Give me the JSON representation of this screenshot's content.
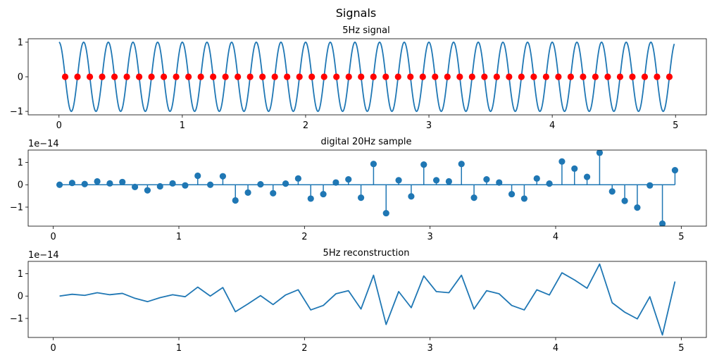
{
  "figure": {
    "suptitle": "Signals"
  },
  "colors": {
    "series": "#1f77b4",
    "samples": "#ff0000"
  },
  "chart_data": [
    {
      "type": "line",
      "title": "5Hz signal",
      "xlabel": "",
      "ylabel": "",
      "xlim": [
        -0.25,
        5.25
      ],
      "ylim": [
        -1.1,
        1.1
      ],
      "xticks": [
        0,
        1,
        2,
        3,
        4,
        5
      ],
      "xtick_labels": [
        "0",
        "1",
        "2",
        "3",
        "4",
        "5"
      ],
      "yticks": [
        -1,
        0,
        1
      ],
      "ytick_labels": [
        "−1",
        "0",
        "1"
      ],
      "offset_text": "",
      "grid": false,
      "series": [
        {
          "kind": "cosine",
          "frequency_hz": 5,
          "amplitude": 1,
          "x_start": 0,
          "x_end": 4.99,
          "color": "#1f77b4"
        },
        {
          "kind": "markers",
          "color": "#ff0000",
          "x": [
            0.05,
            0.15,
            0.25,
            0.35,
            0.45,
            0.55,
            0.65,
            0.75,
            0.85,
            0.95,
            1.05,
            1.15,
            1.25,
            1.35,
            1.45,
            1.55,
            1.65,
            1.75,
            1.85,
            1.95,
            2.05,
            2.15,
            2.25,
            2.35,
            2.45,
            2.55,
            2.65,
            2.75,
            2.85,
            2.95,
            3.05,
            3.15,
            3.25,
            3.35,
            3.45,
            3.55,
            3.65,
            3.75,
            3.85,
            3.95,
            4.05,
            4.15,
            4.25,
            4.35,
            4.45,
            4.55,
            4.65,
            4.75,
            4.85,
            4.95
          ],
          "y": [
            0,
            0,
            0,
            0,
            0,
            0,
            0,
            0,
            0,
            0,
            0,
            0,
            0,
            0,
            0,
            0,
            0,
            0,
            0,
            0,
            0,
            0,
            0,
            0,
            0,
            0,
            0,
            0,
            0,
            0,
            0,
            0,
            0,
            0,
            0,
            0,
            0,
            0,
            0,
            0,
            0,
            0,
            0,
            0,
            0,
            0,
            0,
            0,
            0,
            0
          ]
        }
      ]
    },
    {
      "type": "stem",
      "title": "digital 20Hz sample",
      "xlabel": "",
      "ylabel": "",
      "xlim": [
        -0.2,
        5.2
      ],
      "ylim": [
        -1.85,
        1.55
      ],
      "xticks": [
        0,
        1,
        2,
        3,
        4,
        5
      ],
      "xtick_labels": [
        "0",
        "1",
        "2",
        "3",
        "4",
        "5"
      ],
      "yticks": [
        -1,
        0,
        1
      ],
      "ytick_labels": [
        "−1",
        "0",
        "1"
      ],
      "offset_text": "1e−14",
      "grid": false,
      "series": [
        {
          "color": "#1f77b4",
          "x": [
            0.05,
            0.15,
            0.25,
            0.35,
            0.45,
            0.55,
            0.65,
            0.75,
            0.85,
            0.95,
            1.05,
            1.15,
            1.25,
            1.35,
            1.45,
            1.55,
            1.65,
            1.75,
            1.85,
            1.95,
            2.05,
            2.15,
            2.25,
            2.35,
            2.45,
            2.55,
            2.65,
            2.75,
            2.85,
            2.95,
            3.05,
            3.15,
            3.25,
            3.35,
            3.45,
            3.55,
            3.65,
            3.75,
            3.85,
            3.95,
            4.05,
            4.15,
            4.25,
            4.35,
            4.45,
            4.55,
            4.65,
            4.75,
            4.85,
            4.95
          ],
          "y": [
            0.0,
            0.08,
            0.03,
            0.15,
            0.06,
            0.12,
            -0.1,
            -0.25,
            -0.07,
            0.06,
            -0.03,
            0.4,
            0.0,
            0.38,
            -0.7,
            -0.35,
            0.02,
            -0.38,
            0.05,
            0.28,
            -0.62,
            -0.42,
            0.1,
            0.24,
            -0.58,
            0.93,
            -1.27,
            0.2,
            -0.52,
            0.9,
            0.2,
            0.15,
            0.93,
            -0.58,
            0.24,
            0.1,
            -0.42,
            -0.62,
            0.28,
            0.05,
            1.04,
            0.72,
            0.35,
            1.43,
            -0.3,
            -0.72,
            -1.02,
            -0.03,
            -1.74,
            0.65
          ]
        }
      ]
    },
    {
      "type": "line",
      "title": "5Hz reconstruction",
      "xlabel": "",
      "ylabel": "",
      "xlim": [
        -0.2,
        5.2
      ],
      "ylim": [
        -1.85,
        1.55
      ],
      "xticks": [
        0,
        1,
        2,
        3,
        4,
        5
      ],
      "xtick_labels": [
        "0",
        "1",
        "2",
        "3",
        "4",
        "5"
      ],
      "yticks": [
        -1,
        0,
        1
      ],
      "ytick_labels": [
        "−1",
        "0",
        "1"
      ],
      "offset_text": "1e−14",
      "grid": false,
      "series": [
        {
          "color": "#1f77b4",
          "x": [
            0.05,
            0.15,
            0.25,
            0.35,
            0.45,
            0.55,
            0.65,
            0.75,
            0.85,
            0.95,
            1.05,
            1.15,
            1.25,
            1.35,
            1.45,
            1.55,
            1.65,
            1.75,
            1.85,
            1.95,
            2.05,
            2.15,
            2.25,
            2.35,
            2.45,
            2.55,
            2.65,
            2.75,
            2.85,
            2.95,
            3.05,
            3.15,
            3.25,
            3.35,
            3.45,
            3.55,
            3.65,
            3.75,
            3.85,
            3.95,
            4.05,
            4.15,
            4.25,
            4.35,
            4.45,
            4.55,
            4.65,
            4.75,
            4.85,
            4.95
          ],
          "y": [
            0.0,
            0.08,
            0.03,
            0.15,
            0.06,
            0.12,
            -0.1,
            -0.25,
            -0.07,
            0.06,
            -0.03,
            0.4,
            0.0,
            0.38,
            -0.7,
            -0.35,
            0.02,
            -0.38,
            0.05,
            0.28,
            -0.62,
            -0.42,
            0.1,
            0.24,
            -0.58,
            0.93,
            -1.27,
            0.2,
            -0.52,
            0.9,
            0.2,
            0.15,
            0.93,
            -0.58,
            0.24,
            0.1,
            -0.42,
            -0.62,
            0.28,
            0.05,
            1.04,
            0.72,
            0.35,
            1.43,
            -0.3,
            -0.72,
            -1.02,
            -0.03,
            -1.74,
            0.65
          ]
        }
      ]
    }
  ]
}
